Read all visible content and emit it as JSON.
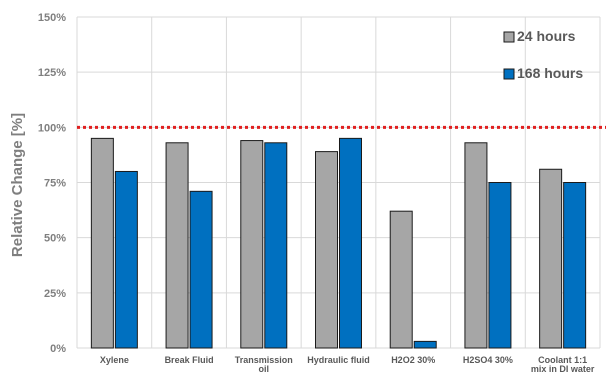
{
  "chart_data": {
    "type": "bar",
    "title": "",
    "xlabel": "",
    "ylabel": "Relative Change [%]",
    "ylim": [
      0,
      150
    ],
    "yticks": [
      "0%",
      "25%",
      "50%",
      "75%",
      "100%",
      "125%",
      "150%"
    ],
    "ytick_values": [
      0,
      25,
      50,
      75,
      100,
      125,
      150
    ],
    "grid": true,
    "legend_position": "top-right",
    "categories": [
      [
        "Xylene"
      ],
      [
        "Break Fluid"
      ],
      [
        "Transmission",
        "oil"
      ],
      [
        "Hydraulic fluid"
      ],
      [
        "H2O2 30%"
      ],
      [
        "H2SO4 30%"
      ],
      [
        "Coolant 1:1",
        "mix in DI water"
      ]
    ],
    "series": [
      {
        "name": "24 hours",
        "color": "#a6a6a6",
        "values": [
          95,
          93,
          94,
          89,
          62,
          93,
          81
        ]
      },
      {
        "name": "168 hours",
        "color": "#0070c0",
        "values": [
          80,
          71,
          93,
          95,
          3,
          75,
          75
        ]
      }
    ],
    "reference_line": {
      "value": 100,
      "color": "#e02020",
      "style": "dotted"
    },
    "colors": {
      "grid": "#d9d9d9",
      "bar_outline": "#1a1a1a"
    }
  }
}
